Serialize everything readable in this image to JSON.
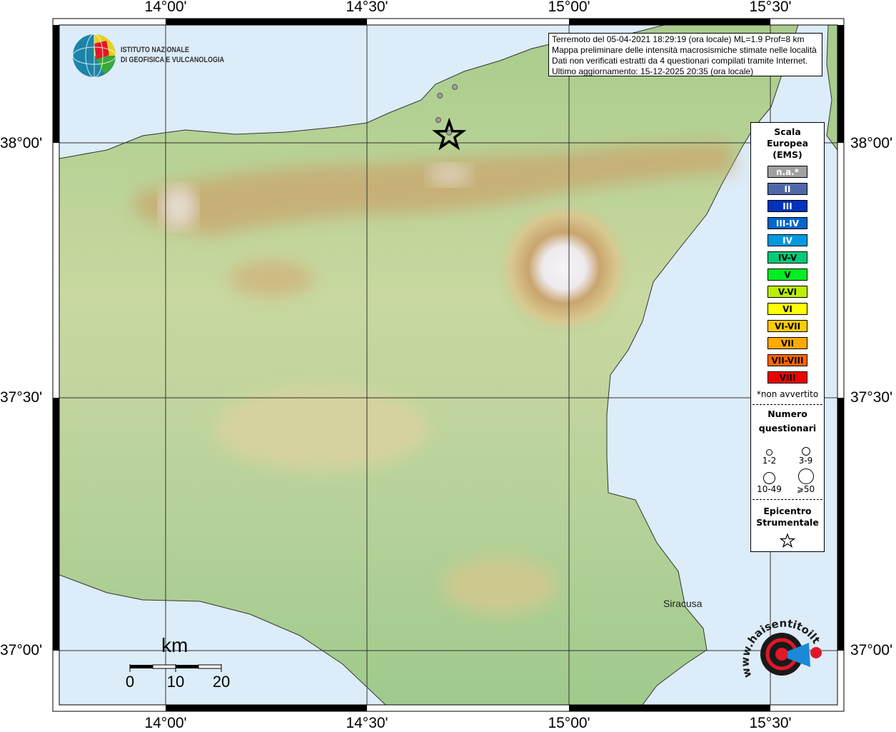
{
  "info": {
    "lines": [
      "Terremoto del 05-04-2021 18:29:19 (ora locale) ML=1.9 Prof=8 km",
      "Mappa preliminare delle intensità macrosismiche stimate nelle località",
      "Dati non verificati estratti da 4 questionari compilati tramite Internet.",
      "Ultimo aggiornamento: 15-12-2025 20:35 (ora locale)"
    ]
  },
  "axes": {
    "lon_labels": [
      "14°00'",
      "14°30'",
      "15°00'",
      "15°30'"
    ],
    "lat_labels": [
      "38°00'",
      "37°30'",
      "37°00'"
    ]
  },
  "legend": {
    "title": [
      "Scala",
      "Europea",
      "(EMS)"
    ],
    "classes": [
      {
        "label": "n.a.*",
        "color": "#a0a0a0",
        "text_color": "#ffffff"
      },
      {
        "label": "II",
        "color": "#4f68a8",
        "text_color": "#ffffff"
      },
      {
        "label": "III",
        "color": "#0033bb",
        "text_color": "#ffffff"
      },
      {
        "label": "III-IV",
        "color": "#0066cc",
        "text_color": "#ffffff"
      },
      {
        "label": "IV",
        "color": "#0099e0",
        "text_color": "#ffffff"
      },
      {
        "label": "IV-V",
        "color": "#00cc77",
        "text_color": "#000000"
      },
      {
        "label": "V",
        "color": "#00ee22",
        "text_color": "#000000"
      },
      {
        "label": "V-VI",
        "color": "#bbee00",
        "text_color": "#000000"
      },
      {
        "label": "VI",
        "color": "#ffff00",
        "text_color": "#000000"
      },
      {
        "label": "VI-VII",
        "color": "#ffcc00",
        "text_color": "#000000"
      },
      {
        "label": "VII",
        "color": "#ffaa00",
        "text_color": "#000000"
      },
      {
        "label": "VII-VIII",
        "color": "#ff6600",
        "text_color": "#000000"
      },
      {
        "label": "VIII",
        "color": "#ee0000",
        "text_color": "#000000"
      }
    ],
    "note": "*non avvertito",
    "questionnaires_title": [
      "Numero",
      "questionari"
    ],
    "questionnaire_sizes": [
      "1-2",
      "3-9",
      "10-49",
      "⩾50"
    ],
    "epicenter_title": [
      "Epicentro",
      "Strumentale"
    ]
  },
  "epicenter": {
    "lon": 14.703,
    "lat": 38.014
  },
  "points": [
    {
      "lon": 14.717,
      "lat": 38.11,
      "class": "n.a.*"
    },
    {
      "lon": 14.68,
      "lat": 38.093,
      "class": "n.a.*"
    },
    {
      "lon": 14.676,
      "lat": 38.045,
      "class": "n.a.*"
    },
    {
      "lon": 14.703,
      "lat": 38.02,
      "class": "n.a.*"
    }
  ],
  "places": [
    {
      "name": "Siracusa"
    }
  ],
  "scale_bar": {
    "unit": "km",
    "labels": [
      "0",
      "10",
      "20"
    ]
  },
  "logos": {
    "ingv": [
      "ISTITUTO NAZIONALE",
      "DI GEOFISICA E VULCANOLOGIA"
    ],
    "hsit": "www.haisentitoilterremoto.it"
  },
  "colors": {
    "sea": "#dcecf8",
    "land": "#b9d49a",
    "highland": "#c9a870",
    "peak": "#f4f2f4"
  }
}
